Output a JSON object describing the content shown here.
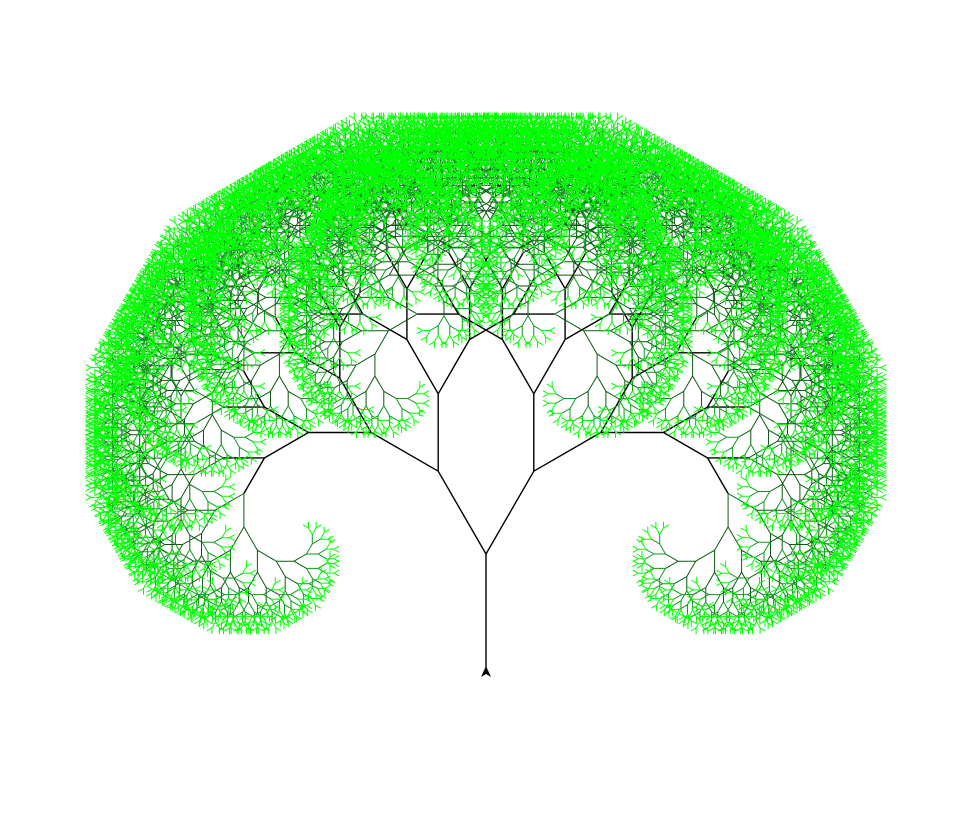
{
  "drawing": {
    "type": "fractal-tree",
    "branch_angle_degrees": 30,
    "depth": 14,
    "trunk_color": "#000000",
    "inner_leaf_color": "#0a5a12",
    "mid_leaf_color": "#0f9a1e",
    "outer_leaf_color": "#00ff00",
    "turtle_cursor_icon": "arrowhead-cursor-icon"
  }
}
